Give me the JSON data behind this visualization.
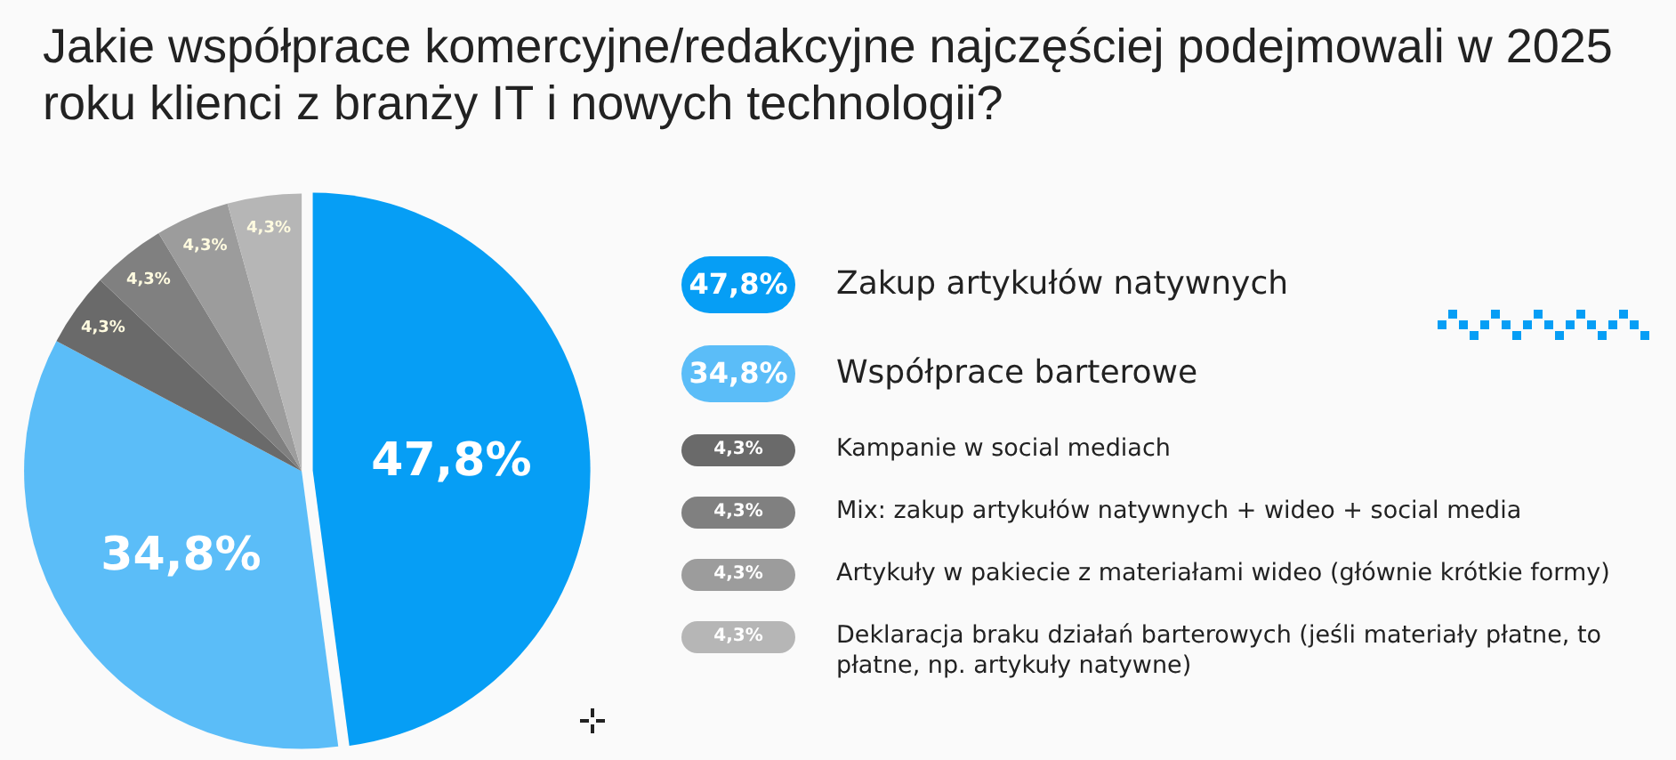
{
  "chart_data": {
    "type": "pie",
    "title": "Jakie współprace komercyjne/redakcyjne najczęściej podejmowali w 2025 roku klienci z branży IT i nowych technologii?",
    "categories": [
      "Zakup artykułów natywnych",
      "Współprace barterowe",
      "Kampanie w social mediach",
      "Mix: zakup artykułów natywnych + wideo + social media",
      "Artykuły w pakiecie z materiałami wideo (głównie krótkie formy)",
      "Deklaracja braku działań barterowych (jeśli materiały płatne, to płatne, np. artykuły natywne)"
    ],
    "values": [
      47.8,
      34.8,
      4.3,
      4.3,
      4.3,
      4.3
    ],
    "value_labels": [
      "47,8%",
      "34,8%",
      "4,3%",
      "4,3%",
      "4,3%",
      "4,3%"
    ],
    "colors": [
      "#069ef5",
      "#5bbdf8",
      "#6a6a6a",
      "#808080",
      "#9c9c9c",
      "#b6b6b6"
    ],
    "legend": "right"
  }
}
